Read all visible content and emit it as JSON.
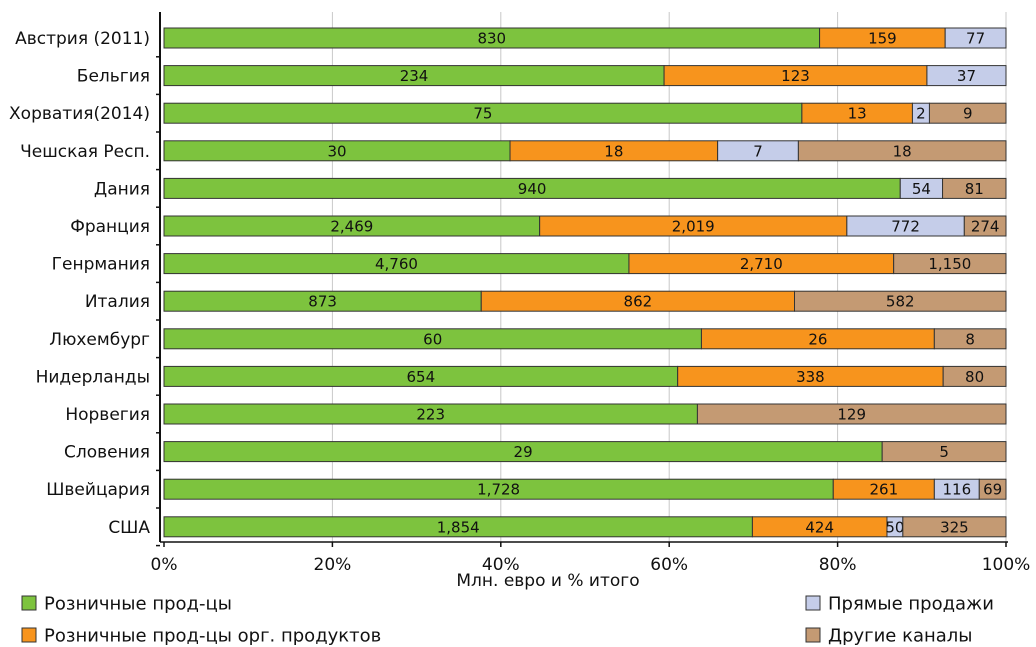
{
  "chart_data": {
    "type": "bar",
    "orientation": "horizontal",
    "stacked": "percent",
    "xlabel": "Млн. евро и % итого",
    "ylabel": "",
    "xlim": [
      0,
      100
    ],
    "xticks": [
      "0%",
      "20%",
      "40%",
      "60%",
      "80%",
      "100%"
    ],
    "grid": true,
    "legend_position": "bottom",
    "categories": [
      "Австрия (2011)",
      "Бельгия",
      "Хорватия(2014)",
      "Чешская Респ.",
      "Дания",
      "Франция",
      "Генрмания",
      "Италия",
      "Люхембург",
      "Нидерланды",
      "Норвегия",
      "Словения",
      "Швейцария",
      "США"
    ],
    "series": [
      {
        "name": "Розничные прод-цы",
        "color": "#7dc33e",
        "values": [
          830,
          234,
          75,
          30,
          940,
          2469,
          4760,
          873,
          60,
          654,
          223,
          29,
          1728,
          1854
        ],
        "labels": [
          "830",
          "234",
          "75",
          "30",
          "940",
          "2,469",
          "4,760",
          "873",
          "60",
          "654",
          "223",
          "29",
          "1,728",
          "1,854"
        ]
      },
      {
        "name": "Розничные прод-цы орг. продуктов",
        "color": "#f7941d",
        "values": [
          159,
          123,
          13,
          18,
          0,
          2019,
          2710,
          862,
          26,
          338,
          0,
          0,
          261,
          424
        ],
        "labels": [
          "159",
          "123",
          "13",
          "18",
          "",
          "2,019",
          "2,710",
          "862",
          "26",
          "338",
          "",
          "",
          "261",
          "424"
        ]
      },
      {
        "name": "Прямые продажи",
        "color": "#c5cde9",
        "values": [
          77,
          37,
          2,
          7,
          54,
          772,
          0,
          0,
          0,
          0,
          0,
          0,
          116,
          50
        ],
        "labels": [
          "77",
          "37",
          "2",
          "7",
          "54",
          "772",
          "",
          "",
          "",
          "",
          "",
          "",
          "116",
          "50"
        ]
      },
      {
        "name": "Другие каналы",
        "color": "#c49a73",
        "values": [
          0,
          0,
          9,
          18,
          81,
          274,
          1150,
          582,
          8,
          80,
          129,
          5,
          69,
          325
        ],
        "labels": [
          "",
          "",
          "9",
          "18",
          "81",
          "274",
          "1,150",
          "582",
          "8",
          "80",
          "129",
          "5",
          "69",
          "325"
        ]
      }
    ]
  }
}
